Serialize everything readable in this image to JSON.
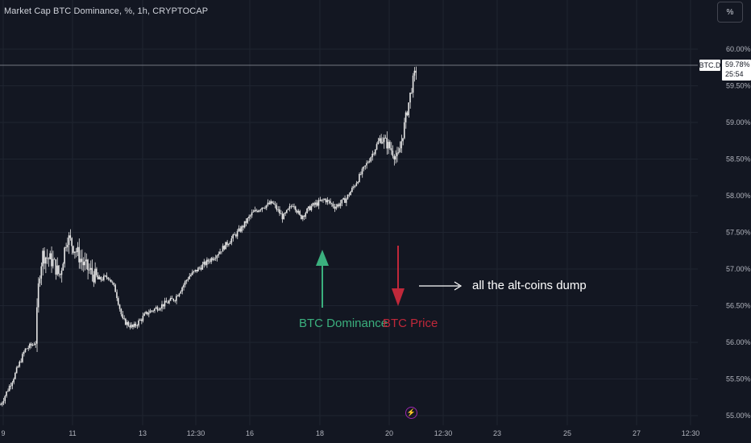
{
  "header": {
    "title": "Market Cap BTC Dominance, %, 1h, CRYPTOCAP",
    "unit_button": "%"
  },
  "price_marker": {
    "ticker": "BTC.D",
    "price": "59.78%",
    "countdown": "25:54"
  },
  "annotations": {
    "dominance_label": "BTC Dominance",
    "price_label": "BTC Price",
    "dump_label": "all the alt-coins dump"
  },
  "lightning_icon": "⚡",
  "colors": {
    "background": "#131722",
    "grid": "#1f2430",
    "candle": "#e6e6e6",
    "dominance_arrow": "#3bb07e",
    "price_arrow": "#c0283a",
    "text": "#d1d4dc"
  },
  "chart_data": {
    "type": "candlestick",
    "title": "Market Cap BTC Dominance, %, 1h, CRYPTOCAP",
    "ylim": [
      54.98,
      60.2
    ],
    "y_ticks": [
      "55.00%",
      "55.50%",
      "56.00%",
      "56.50%",
      "57.00%",
      "57.50%",
      "58.00%",
      "58.50%",
      "59.00%",
      "59.50%",
      "60.00%"
    ],
    "x_ticks": [
      "9",
      "11",
      "13",
      "12:30",
      "16",
      "18",
      "20",
      "12:30",
      "23",
      "25",
      "27",
      "12:30"
    ],
    "last_value": 59.78,
    "trend_close": [
      [
        9.0,
        55.15
      ],
      [
        9.4,
        55.55
      ],
      [
        9.7,
        55.9
      ],
      [
        10.0,
        56.0
      ],
      [
        10.1,
        56.9
      ],
      [
        10.2,
        57.2
      ],
      [
        10.5,
        57.1
      ],
      [
        10.7,
        56.9
      ],
      [
        10.9,
        57.45
      ],
      [
        11.1,
        57.3
      ],
      [
        11.4,
        57.05
      ],
      [
        11.8,
        56.85
      ],
      [
        12.1,
        56.9
      ],
      [
        12.3,
        56.7
      ],
      [
        12.5,
        56.3
      ],
      [
        12.8,
        56.2
      ],
      [
        13.2,
        56.4
      ],
      [
        13.6,
        56.5
      ],
      [
        14.0,
        56.6
      ],
      [
        14.4,
        56.9
      ],
      [
        14.8,
        57.05
      ],
      [
        15.2,
        57.2
      ],
      [
        15.6,
        57.4
      ],
      [
        15.9,
        57.55
      ],
      [
        16.2,
        57.75
      ],
      [
        16.5,
        57.85
      ],
      [
        16.8,
        57.9
      ],
      [
        17.1,
        57.7
      ],
      [
        17.4,
        57.9
      ],
      [
        17.6,
        57.7
      ],
      [
        17.9,
        57.85
      ],
      [
        18.3,
        57.95
      ],
      [
        18.6,
        57.85
      ],
      [
        18.9,
        57.95
      ],
      [
        19.1,
        58.1
      ],
      [
        19.4,
        58.35
      ],
      [
        19.7,
        58.6
      ],
      [
        19.9,
        58.8
      ],
      [
        20.1,
        58.7
      ],
      [
        20.4,
        58.5
      ],
      [
        20.6,
        59.0
      ],
      [
        20.8,
        59.5
      ],
      [
        20.95,
        59.78
      ]
    ]
  }
}
